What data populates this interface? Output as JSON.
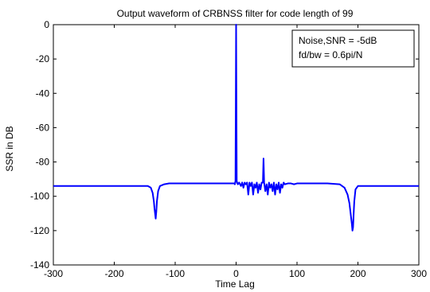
{
  "chart_data": {
    "type": "line",
    "title": "Output waveform of CRBNSS filter for code length of 99",
    "xlabel": "Time Lag",
    "ylabel": "SSR  in DB",
    "xlim": [
      -300,
      300
    ],
    "ylim": [
      -140,
      0
    ],
    "xticks": [
      -300,
      -200,
      -100,
      0,
      100,
      200,
      300
    ],
    "yticks": [
      -140,
      -120,
      -100,
      -80,
      -60,
      -40,
      -20,
      0
    ],
    "grid": false,
    "legend": {
      "placement": "top-right",
      "lines": [
        "Noise,SNR = -5dB",
        "fd/bw = 0.6pi/N"
      ]
    },
    "series": [
      {
        "color": "#0000ff",
        "x": [
          -300,
          -145,
          -140,
          -137,
          -135,
          -134,
          -133,
          -132,
          -131,
          -130,
          -128,
          -125,
          -118,
          -110,
          -100,
          -50,
          -10,
          -3,
          -2,
          -1,
          0,
          1,
          2,
          3,
          5,
          8,
          10,
          12,
          14,
          16,
          18,
          20,
          22,
          24,
          26,
          28,
          30,
          32,
          34,
          36,
          38,
          40,
          42,
          44,
          45,
          46,
          48,
          50,
          52,
          54,
          56,
          58,
          60,
          62,
          64,
          66,
          68,
          70,
          72,
          74,
          76,
          78,
          80,
          85,
          90,
          95,
          100,
          150,
          170,
          178,
          183,
          186,
          188,
          190,
          191,
          192,
          193,
          194,
          196,
          200,
          205,
          210,
          300
        ],
        "y": [
          -94,
          -94,
          -95,
          -98,
          -103,
          -107,
          -110,
          -113,
          -109,
          -103,
          -97,
          -94,
          -93,
          -92.5,
          -92.5,
          -92.5,
          -92.5,
          -92.5,
          -93,
          -91,
          0,
          -91,
          -92.5,
          -93,
          -92,
          -94,
          -92,
          -95,
          -92,
          -93,
          -92,
          -99,
          -92,
          -94,
          -92,
          -99,
          -93,
          -95,
          -92,
          -98,
          -93,
          -96,
          -92,
          -92,
          -78,
          -92,
          -97,
          -93,
          -99,
          -92,
          -95,
          -93,
          -97,
          -92,
          -99,
          -93,
          -96,
          -92,
          -98,
          -93,
          -95,
          -92,
          -93,
          -92.5,
          -92.5,
          -93,
          -92.5,
          -92.5,
          -93,
          -95,
          -99,
          -104,
          -110,
          -116,
          -120,
          -118,
          -110,
          -103,
          -96,
          -94,
          -94,
          -94,
          -94
        ]
      }
    ]
  }
}
